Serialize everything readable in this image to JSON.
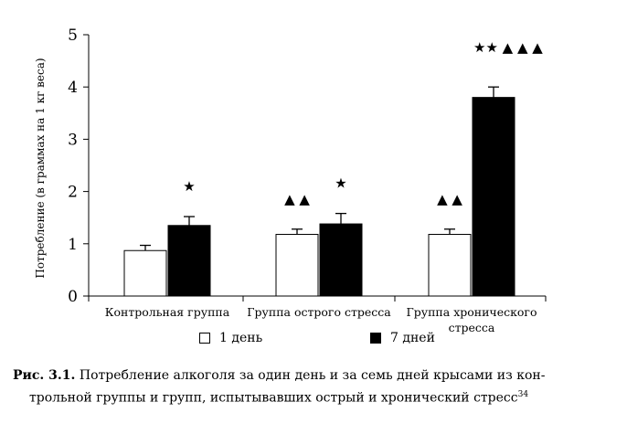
{
  "chart_data": {
    "type": "bar",
    "categories": [
      "Контрольная группа",
      "Группа острого стресса",
      "Группа хронического стресса"
    ],
    "category_label_lines": [
      [
        "Контрольная группа"
      ],
      [
        "Группа острого стресса"
      ],
      [
        "Группа хронического",
        "стресса"
      ]
    ],
    "series": [
      {
        "name": "1 день",
        "values": [
          0.87,
          1.18,
          1.18
        ],
        "errors": [
          0.1,
          0.1,
          0.1
        ],
        "color": "#ffffff"
      },
      {
        "name": "7 дней",
        "values": [
          1.35,
          1.38,
          3.8
        ],
        "errors": [
          0.17,
          0.2,
          0.2
        ],
        "color": "#000000"
      }
    ],
    "ylabel": "Потребление (в граммах на 1 кг веса)",
    "xlabel": "",
    "ylim": [
      0,
      5
    ],
    "yticks": [
      0,
      1,
      2,
      3,
      4,
      5
    ],
    "grid": false,
    "legend_position": "bottom",
    "annotations": [
      {
        "category": 0,
        "series": 1,
        "text": "★"
      },
      {
        "category": 1,
        "series": 0,
        "text": "▲ ▲"
      },
      {
        "category": 1,
        "series": 1,
        "text": "★"
      },
      {
        "category": 2,
        "series": 0,
        "text": "▲ ▲"
      },
      {
        "category": 2,
        "series": 1,
        "text": "★★ ▲ ▲ ▲"
      }
    ]
  },
  "caption": {
    "label": "Рис. 3.1.",
    "line1": "Потребление алкоголя за один день и за семь дней крысами из кон-",
    "line2": "трольной группы и групп, испытывавших острый и хронический стресс",
    "ref": "34"
  }
}
